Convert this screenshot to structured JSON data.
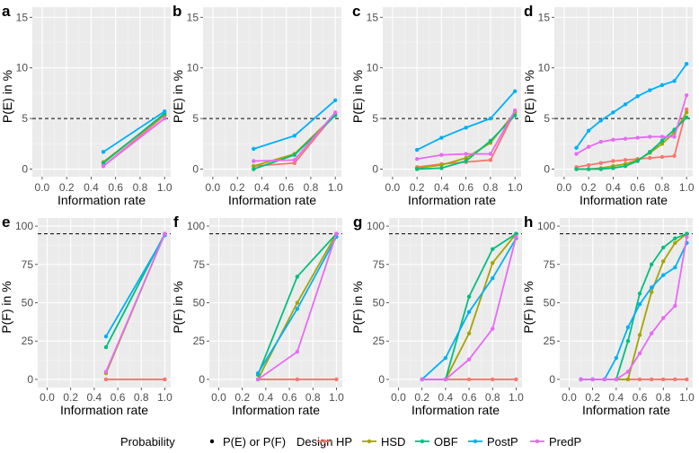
{
  "chart_data": [
    {
      "panel": "a",
      "type": "line",
      "xlabel": "Information rate",
      "ylabel": "P(E) in %",
      "ylim": [
        0,
        15
      ],
      "yticks": [
        0,
        5,
        10,
        15
      ],
      "xticks": [
        "0.0",
        "0.2",
        "0.4",
        "0.6",
        "0.8",
        "1.0"
      ],
      "reference_line": 5,
      "x": [
        0.5,
        1.0
      ],
      "series": [
        {
          "name": "HP",
          "values": [
            0.3,
            5.3
          ]
        },
        {
          "name": "HSD",
          "values": [
            0.7,
            5.4
          ]
        },
        {
          "name": "OBF",
          "values": [
            0.6,
            5.5
          ]
        },
        {
          "name": "PostP",
          "values": [
            1.7,
            5.7
          ]
        },
        {
          "name": "PredP",
          "values": [
            0.3,
            5.0
          ]
        }
      ]
    },
    {
      "panel": "b",
      "type": "line",
      "xlabel": "Information rate",
      "ylabel": "P(E) in %",
      "ylim": [
        0,
        15
      ],
      "yticks": [
        0,
        5,
        10,
        15
      ],
      "xticks": [
        "0.0",
        "0.2",
        "0.4",
        "0.6",
        "0.8",
        "1.0"
      ],
      "reference_line": 5,
      "x": [
        0.333,
        0.667,
        1.0
      ],
      "series": [
        {
          "name": "HP",
          "values": [
            0.3,
            0.6,
            5.5
          ]
        },
        {
          "name": "HSD",
          "values": [
            0.3,
            1.5,
            5.4
          ]
        },
        {
          "name": "OBF",
          "values": [
            0.0,
            1.4,
            5.3
          ]
        },
        {
          "name": "PostP",
          "values": [
            2.0,
            3.3,
            6.8
          ]
        },
        {
          "name": "PredP",
          "values": [
            0.8,
            0.9,
            5.6
          ]
        }
      ]
    },
    {
      "panel": "c",
      "type": "line",
      "xlabel": "Information rate",
      "ylabel": "P(E) in %",
      "ylim": [
        0,
        15
      ],
      "yticks": [
        0,
        5,
        10,
        15
      ],
      "xticks": [
        "0.0",
        "0.2",
        "0.4",
        "0.6",
        "0.8",
        "1.0"
      ],
      "reference_line": 5,
      "x": [
        0.2,
        0.4,
        0.6,
        0.8,
        1.0
      ],
      "series": [
        {
          "name": "HP",
          "values": [
            0.2,
            0.5,
            0.7,
            0.9,
            5.7
          ]
        },
        {
          "name": "HSD",
          "values": [
            0.1,
            0.4,
            1.1,
            2.6,
            5.6
          ]
        },
        {
          "name": "OBF",
          "values": [
            0.0,
            0.1,
            0.8,
            2.8,
            5.3
          ]
        },
        {
          "name": "PostP",
          "values": [
            1.9,
            3.1,
            4.1,
            5.0,
            7.7
          ]
        },
        {
          "name": "PredP",
          "values": [
            1.0,
            1.4,
            1.5,
            1.5,
            5.8
          ]
        }
      ]
    },
    {
      "panel": "d",
      "type": "line",
      "xlabel": "Information rate",
      "ylabel": "P(E) in %",
      "ylim": [
        0,
        15
      ],
      "yticks": [
        0,
        5,
        10,
        15
      ],
      "xticks": [
        "0.0",
        "0.2",
        "0.4",
        "0.6",
        "0.8",
        "1.0"
      ],
      "reference_line": 5,
      "x": [
        0.1,
        0.2,
        0.3,
        0.4,
        0.5,
        0.6,
        0.7,
        0.8,
        0.9,
        1.0
      ],
      "series": [
        {
          "name": "HP",
          "values": [
            0.2,
            0.4,
            0.6,
            0.8,
            0.9,
            1.0,
            1.1,
            1.2,
            1.3,
            5.9
          ]
        },
        {
          "name": "HSD",
          "values": [
            0.0,
            0.0,
            0.1,
            0.3,
            0.5,
            0.9,
            1.6,
            2.5,
            3.6,
            5.6
          ]
        },
        {
          "name": "OBF",
          "values": [
            0.0,
            0.0,
            0.0,
            0.1,
            0.3,
            0.8,
            1.7,
            2.8,
            3.9,
            5.1
          ]
        },
        {
          "name": "PostP",
          "values": [
            2.1,
            3.8,
            4.8,
            5.6,
            6.4,
            7.2,
            7.8,
            8.3,
            8.7,
            10.4
          ]
        },
        {
          "name": "PredP",
          "values": [
            1.5,
            2.2,
            2.7,
            2.9,
            3.0,
            3.1,
            3.2,
            3.2,
            3.2,
            7.3
          ]
        }
      ]
    },
    {
      "panel": "e",
      "type": "line",
      "xlabel": "Information rate",
      "ylabel": "P(F) in %",
      "ylim": [
        0,
        100
      ],
      "yticks": [
        0,
        25,
        50,
        75,
        100
      ],
      "xticks": [
        "0.0",
        "0.2",
        "0.4",
        "0.6",
        "0.8",
        "1.0"
      ],
      "reference_line": 95,
      "x": [
        0.5,
        1.0
      ],
      "series": [
        {
          "name": "HP",
          "values": [
            0,
            0
          ]
        },
        {
          "name": "HSD",
          "values": [
            4,
            95
          ]
        },
        {
          "name": "OBF",
          "values": [
            21,
            95
          ]
        },
        {
          "name": "PostP",
          "values": [
            28,
            94
          ]
        },
        {
          "name": "PredP",
          "values": [
            5,
            95
          ]
        }
      ]
    },
    {
      "panel": "f",
      "type": "line",
      "xlabel": "Information rate",
      "ylabel": "P(F) in %",
      "ylim": [
        0,
        100
      ],
      "yticks": [
        0,
        25,
        50,
        75,
        100
      ],
      "xticks": [
        "0.0",
        "0.2",
        "0.4",
        "0.6",
        "0.8",
        "1.0"
      ],
      "reference_line": 95,
      "x": [
        0.333,
        0.667,
        1.0
      ],
      "series": [
        {
          "name": "HP",
          "values": [
            0,
            0,
            0
          ]
        },
        {
          "name": "HSD",
          "values": [
            0,
            50,
            95
          ]
        },
        {
          "name": "OBF",
          "values": [
            3,
            67,
            95
          ]
        },
        {
          "name": "PostP",
          "values": [
            4,
            46,
            93
          ]
        },
        {
          "name": "PredP",
          "values": [
            0,
            18,
            95
          ]
        }
      ]
    },
    {
      "panel": "g",
      "type": "line",
      "xlabel": "Information rate",
      "ylabel": "P(F) in %",
      "ylim": [
        0,
        100
      ],
      "yticks": [
        0,
        25,
        50,
        75,
        100
      ],
      "xticks": [
        "0.0",
        "0.2",
        "0.4",
        "0.6",
        "0.8",
        "1.0"
      ],
      "reference_line": 95,
      "x": [
        0.2,
        0.4,
        0.6,
        0.8,
        1.0
      ],
      "series": [
        {
          "name": "HP",
          "values": [
            0,
            0,
            0,
            0,
            0
          ]
        },
        {
          "name": "HSD",
          "values": [
            0,
            0,
            30,
            76,
            95
          ]
        },
        {
          "name": "OBF",
          "values": [
            0,
            0,
            54,
            85,
            95
          ]
        },
        {
          "name": "PostP",
          "values": [
            0,
            14,
            44,
            66,
            92
          ]
        },
        {
          "name": "PredP",
          "values": [
            0,
            0,
            13,
            33,
            93
          ]
        }
      ]
    },
    {
      "panel": "h",
      "type": "line",
      "xlabel": "Information rate",
      "ylabel": "P(F) in %",
      "ylim": [
        0,
        100
      ],
      "yticks": [
        0,
        25,
        50,
        75,
        100
      ],
      "xticks": [
        "0.0",
        "0.2",
        "0.4",
        "0.6",
        "0.8",
        "1.0"
      ],
      "reference_line": 95,
      "x": [
        0.1,
        0.2,
        0.3,
        0.4,
        0.5,
        0.6,
        0.7,
        0.8,
        0.9,
        1.0
      ],
      "series": [
        {
          "name": "HP",
          "values": [
            0,
            0,
            0,
            0,
            0,
            0,
            0,
            0,
            0,
            0
          ]
        },
        {
          "name": "HSD",
          "values": [
            0,
            0,
            0,
            0,
            0,
            29,
            57,
            77,
            89,
            95
          ]
        },
        {
          "name": "OBF",
          "values": [
            0,
            0,
            0,
            0,
            25,
            56,
            75,
            86,
            92,
            95
          ]
        },
        {
          "name": "PostP",
          "values": [
            0,
            0,
            0,
            14,
            34,
            49,
            60,
            68,
            73,
            89
          ]
        },
        {
          "name": "PredP",
          "values": [
            0,
            0,
            0,
            0,
            5,
            17,
            30,
            40,
            48,
            93
          ]
        }
      ]
    }
  ],
  "legend": {
    "probability_title": "Probability",
    "probability_label": "P(E) or P(F)",
    "design_title": "Design",
    "items": [
      {
        "name": "HP",
        "color": "#F8766D"
      },
      {
        "name": "HSD",
        "color": "#A3A500"
      },
      {
        "name": "OBF",
        "color": "#00BF7D"
      },
      {
        "name": "PostP",
        "color": "#00B0F6"
      },
      {
        "name": "PredP",
        "color": "#E76BF3"
      }
    ]
  }
}
